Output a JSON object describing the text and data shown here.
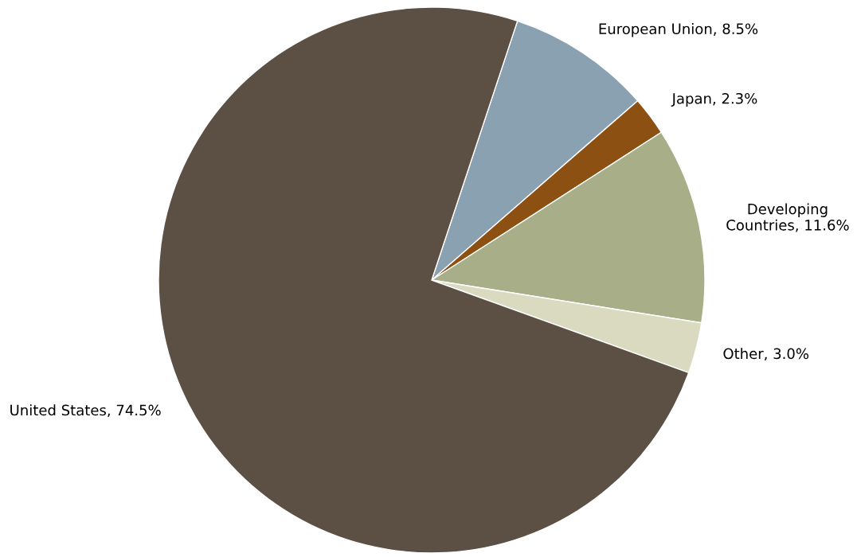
{
  "chart_data": {
    "type": "pie",
    "categories": [
      "European Union",
      "Japan",
      "Developing Countries",
      "Other",
      "United States"
    ],
    "values": [
      8.5,
      2.3,
      11.6,
      3.0,
      74.5
    ],
    "value_labels": [
      "8.5%",
      "2.3%",
      "11.6%",
      "3.0%",
      "74.5%"
    ],
    "colors": [
      "#8aa1b1",
      "#8d5013",
      "#a8ae88",
      "#d9dac0",
      "#5c5045"
    ]
  }
}
